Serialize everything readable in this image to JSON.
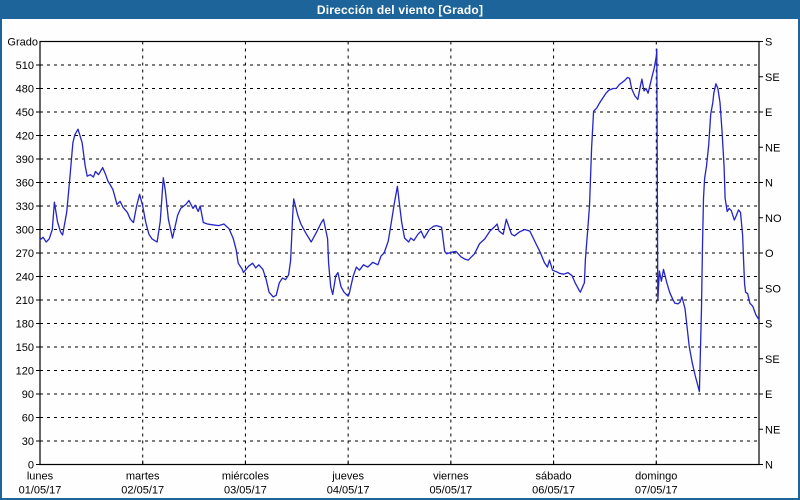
{
  "window": {
    "title": "Dirección del viento [Grado]"
  },
  "colors": {
    "titlebar_bg": "#1c6499",
    "titlebar_text": "#ffffff",
    "frame_border": "#1c6499",
    "plot_border": "#000000",
    "grid": "#000000",
    "line": "#2424c8",
    "text": "#000000",
    "background": "#ffffff"
  },
  "chart_data": {
    "type": "line",
    "title": "Dirección del viento [Grado]",
    "grid": "dashed",
    "legend": "none",
    "y_left": {
      "label": "Grado",
      "min": 0,
      "max": 540,
      "tick_step": 30,
      "ticks": [
        0,
        30,
        60,
        90,
        120,
        150,
        180,
        210,
        240,
        270,
        300,
        330,
        360,
        390,
        420,
        450,
        480,
        510
      ]
    },
    "y_right": {
      "ticks": [
        {
          "value": 0,
          "label": "N"
        },
        {
          "value": 45,
          "label": "NE"
        },
        {
          "value": 90,
          "label": "E"
        },
        {
          "value": 135,
          "label": "SE"
        },
        {
          "value": 180,
          "label": "S"
        },
        {
          "value": 225,
          "label": "SO"
        },
        {
          "value": 270,
          "label": "O"
        },
        {
          "value": 315,
          "label": "NO"
        },
        {
          "value": 360,
          "label": "N"
        },
        {
          "value": 405,
          "label": "NE"
        },
        {
          "value": 450,
          "label": "E"
        },
        {
          "value": 495,
          "label": "SE"
        },
        {
          "value": 540,
          "label": "S"
        }
      ]
    },
    "x_axis": {
      "span_days": 7,
      "days": [
        {
          "name": "lunes",
          "date": "01/05/17"
        },
        {
          "name": "martes",
          "date": "02/05/17"
        },
        {
          "name": "miércoles",
          "date": "03/05/17"
        },
        {
          "name": "jueves",
          "date": "04/05/17"
        },
        {
          "name": "viernes",
          "date": "05/05/17"
        },
        {
          "name": "sábado",
          "date": "06/05/17"
        },
        {
          "name": "domingo",
          "date": "07/05/17"
        }
      ]
    },
    "series": [
      {
        "name": "Dirección del viento",
        "unit": "Grado",
        "color": "#2424c8",
        "points": [
          [
            0,
            287
          ],
          [
            0.03,
            290
          ],
          [
            0.06,
            284
          ],
          [
            0.09,
            288
          ],
          [
            0.12,
            300
          ],
          [
            0.14,
            335
          ],
          [
            0.17,
            310
          ],
          [
            0.2,
            297
          ],
          [
            0.22,
            293
          ],
          [
            0.26,
            322
          ],
          [
            0.29,
            365
          ],
          [
            0.32,
            411
          ],
          [
            0.34,
            421
          ],
          [
            0.37,
            428
          ],
          [
            0.41,
            411
          ],
          [
            0.44,
            381
          ],
          [
            0.46,
            368
          ],
          [
            0.49,
            370
          ],
          [
            0.52,
            367
          ],
          [
            0.54,
            374
          ],
          [
            0.57,
            370
          ],
          [
            0.61,
            379
          ],
          [
            0.64,
            370
          ],
          [
            0.66,
            362
          ],
          [
            0.68,
            358
          ],
          [
            0.71,
            351
          ],
          [
            0.75,
            332
          ],
          [
            0.78,
            336
          ],
          [
            0.81,
            328
          ],
          [
            0.85,
            322
          ],
          [
            0.88,
            313
          ],
          [
            0.91,
            309
          ],
          [
            0.94,
            330
          ],
          [
            0.97,
            345
          ],
          [
            1,
            330
          ],
          [
            1.03,
            309
          ],
          [
            1.06,
            294
          ],
          [
            1.09,
            288
          ],
          [
            1.14,
            284
          ],
          [
            1.17,
            310
          ],
          [
            1.2,
            366
          ],
          [
            1.22,
            350
          ],
          [
            1.25,
            313
          ],
          [
            1.29,
            289
          ],
          [
            1.34,
            318
          ],
          [
            1.37,
            327
          ],
          [
            1.42,
            332
          ],
          [
            1.45,
            337
          ],
          [
            1.49,
            327
          ],
          [
            1.51,
            331
          ],
          [
            1.54,
            323
          ],
          [
            1.56,
            330
          ],
          [
            1.59,
            309
          ],
          [
            1.63,
            307
          ],
          [
            1.68,
            306
          ],
          [
            1.74,
            305
          ],
          [
            1.79,
            307
          ],
          [
            1.84,
            301
          ],
          [
            1.88,
            289
          ],
          [
            1.91,
            274
          ],
          [
            1.93,
            257
          ],
          [
            1.97,
            249
          ],
          [
            1.98,
            245
          ],
          [
            2.03,
            253
          ],
          [
            2.07,
            257
          ],
          [
            2.1,
            251
          ],
          [
            2.13,
            255
          ],
          [
            2.17,
            249
          ],
          [
            2.2,
            237
          ],
          [
            2.23,
            220
          ],
          [
            2.27,
            214
          ],
          [
            2.3,
            216
          ],
          [
            2.33,
            232
          ],
          [
            2.36,
            238
          ],
          [
            2.39,
            236
          ],
          [
            2.42,
            242
          ],
          [
            2.44,
            260
          ],
          [
            2.46,
            318
          ],
          [
            2.47,
            339
          ],
          [
            2.51,
            318
          ],
          [
            2.54,
            307
          ],
          [
            2.59,
            295
          ],
          [
            2.64,
            284
          ],
          [
            2.69,
            296
          ],
          [
            2.74,
            309
          ],
          [
            2.76,
            313
          ],
          [
            2.8,
            288
          ],
          [
            2.81,
            257
          ],
          [
            2.83,
            227
          ],
          [
            2.85,
            217
          ],
          [
            2.88,
            241
          ],
          [
            2.9,
            245
          ],
          [
            2.93,
            227
          ],
          [
            2.96,
            220
          ],
          [
            3,
            215
          ],
          [
            3.01,
            218
          ],
          [
            3.05,
            241
          ],
          [
            3.08,
            252
          ],
          [
            3.11,
            248
          ],
          [
            3.15,
            255
          ],
          [
            3.19,
            252
          ],
          [
            3.24,
            258
          ],
          [
            3.29,
            255
          ],
          [
            3.32,
            266
          ],
          [
            3.35,
            270
          ],
          [
            3.39,
            285
          ],
          [
            3.42,
            309
          ],
          [
            3.45,
            334
          ],
          [
            3.48,
            355
          ],
          [
            3.5,
            332
          ],
          [
            3.52,
            310
          ],
          [
            3.55,
            289
          ],
          [
            3.59,
            284
          ],
          [
            3.61,
            289
          ],
          [
            3.64,
            286
          ],
          [
            3.68,
            294
          ],
          [
            3.71,
            298
          ],
          [
            3.74,
            289
          ],
          [
            3.79,
            300
          ],
          [
            3.83,
            304
          ],
          [
            3.86,
            305
          ],
          [
            3.91,
            303
          ],
          [
            3.94,
            272
          ],
          [
            3.96,
            269
          ],
          [
            4.01,
            271
          ],
          [
            4.05,
            272
          ],
          [
            4.1,
            265
          ],
          [
            4.14,
            262
          ],
          [
            4.17,
            261
          ],
          [
            4.23,
            269
          ],
          [
            4.28,
            282
          ],
          [
            4.33,
            288
          ],
          [
            4.38,
            298
          ],
          [
            4.43,
            304
          ],
          [
            4.45,
            307
          ],
          [
            4.47,
            298
          ],
          [
            4.51,
            294
          ],
          [
            4.54,
            313
          ],
          [
            4.59,
            294
          ],
          [
            4.62,
            292
          ],
          [
            4.67,
            297
          ],
          [
            4.72,
            300
          ],
          [
            4.77,
            298
          ],
          [
            4.82,
            284
          ],
          [
            4.87,
            271
          ],
          [
            4.91,
            258
          ],
          [
            4.94,
            252
          ],
          [
            4.96,
            261
          ],
          [
            4.99,
            248
          ],
          [
            5.03,
            246
          ],
          [
            5.06,
            244
          ],
          [
            5.1,
            243
          ],
          [
            5.14,
            245
          ],
          [
            5.18,
            241
          ],
          [
            5.21,
            232
          ],
          [
            5.25,
            222
          ],
          [
            5.26,
            220
          ],
          [
            5.3,
            232
          ],
          [
            5.31,
            262
          ],
          [
            5.33,
            296
          ],
          [
            5.35,
            330
          ],
          [
            5.37,
            404
          ],
          [
            5.39,
            451
          ],
          [
            5.42,
            455
          ],
          [
            5.45,
            462
          ],
          [
            5.48,
            468
          ],
          [
            5.51,
            474
          ],
          [
            5.54,
            478
          ],
          [
            5.58,
            480
          ],
          [
            5.61,
            480
          ],
          [
            5.64,
            485
          ],
          [
            5.69,
            490
          ],
          [
            5.72,
            494
          ],
          [
            5.74,
            493
          ],
          [
            5.76,
            480
          ],
          [
            5.79,
            471
          ],
          [
            5.82,
            466
          ],
          [
            5.84,
            480
          ],
          [
            5.86,
            492
          ],
          [
            5.88,
            477
          ],
          [
            5.9,
            480
          ],
          [
            5.92,
            474
          ],
          [
            5.94,
            485
          ],
          [
            5.96,
            496
          ],
          [
            5.98,
            506
          ],
          [
            6,
            521
          ],
          [
            6.005,
            530
          ],
          [
            6.015,
            209
          ],
          [
            6.03,
            247
          ],
          [
            6.05,
            234
          ],
          [
            6.07,
            249
          ],
          [
            6.1,
            233
          ],
          [
            6.13,
            220
          ],
          [
            6.16,
            211
          ],
          [
            6.18,
            206
          ],
          [
            6.21,
            205
          ],
          [
            6.23,
            207
          ],
          [
            6.25,
            214
          ],
          [
            6.28,
            199
          ],
          [
            6.32,
            151
          ],
          [
            6.35,
            130
          ],
          [
            6.38,
            113
          ],
          [
            6.41,
            98
          ],
          [
            6.42,
            93
          ],
          [
            6.44,
            200
          ],
          [
            6.45,
            280
          ],
          [
            6.46,
            340
          ],
          [
            6.47,
            365
          ],
          [
            6.49,
            382
          ],
          [
            6.51,
            408
          ],
          [
            6.53,
            447
          ],
          [
            6.55,
            462
          ],
          [
            6.56,
            474
          ],
          [
            6.58,
            486
          ],
          [
            6.6,
            480
          ],
          [
            6.62,
            462
          ],
          [
            6.64,
            426
          ],
          [
            6.66,
            380
          ],
          [
            6.67,
            340
          ],
          [
            6.69,
            323
          ],
          [
            6.71,
            327
          ],
          [
            6.73,
            324
          ],
          [
            6.76,
            312
          ],
          [
            6.78,
            318
          ],
          [
            6.8,
            325
          ],
          [
            6.82,
            322
          ],
          [
            6.84,
            293
          ],
          [
            6.85,
            260
          ],
          [
            6.86,
            230
          ],
          [
            6.87,
            220
          ],
          [
            6.89,
            218
          ],
          [
            6.91,
            206
          ],
          [
            6.94,
            202
          ],
          [
            6.97,
            191
          ],
          [
            7,
            185
          ]
        ]
      }
    ]
  }
}
